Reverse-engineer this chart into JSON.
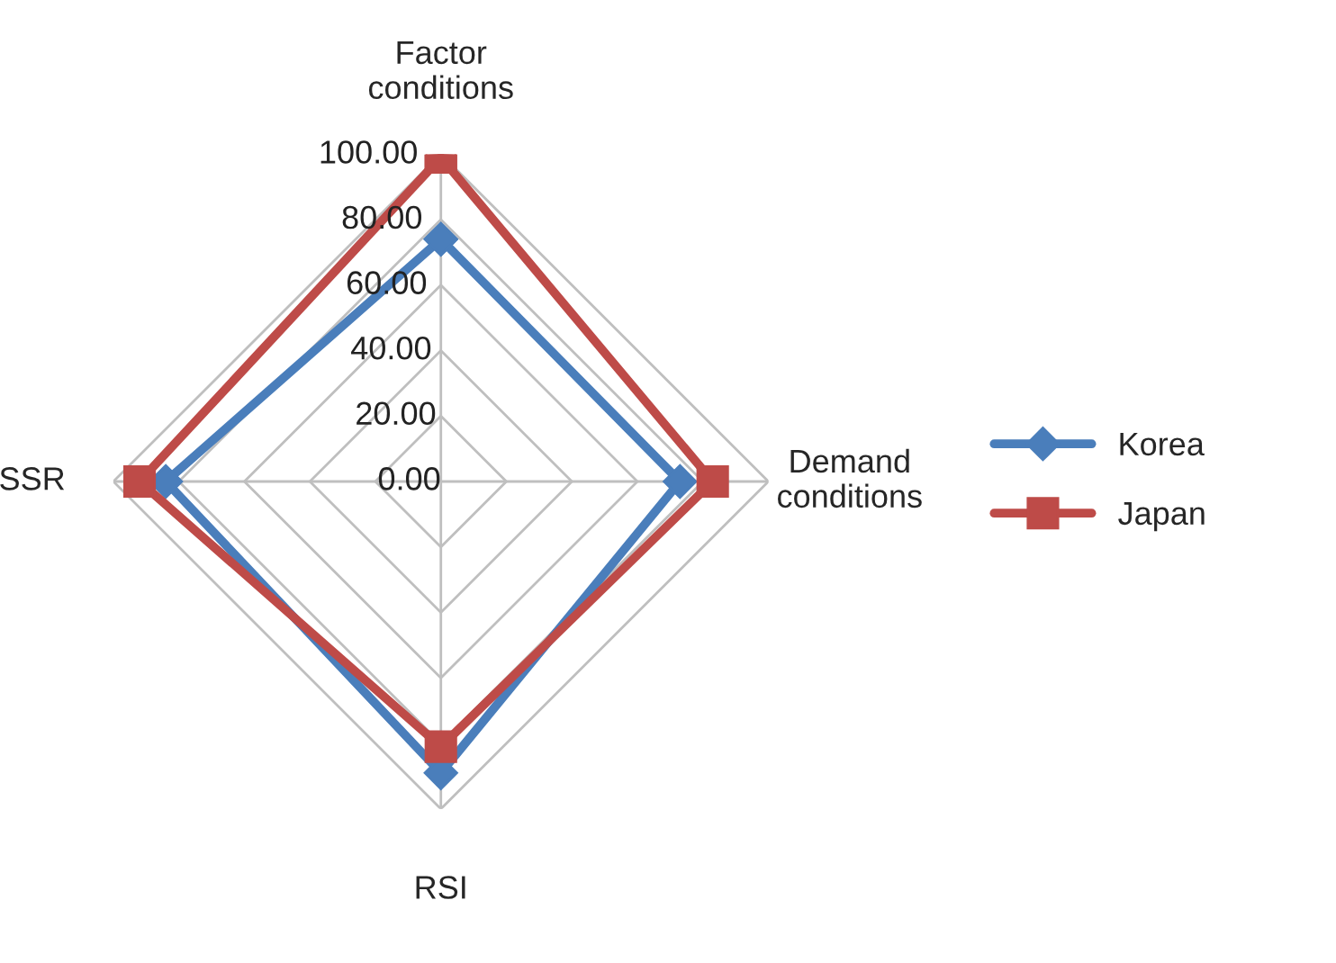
{
  "chart_data": {
    "type": "radar",
    "categories": [
      "Factor\nconditions",
      "Demand\nconditions",
      "RSI",
      "SSR"
    ],
    "series": [
      {
        "name": "Korea",
        "color": "#4a7ebb",
        "values": [
          74,
          73,
          89,
          84
        ],
        "marker": "diamond"
      },
      {
        "name": "Japan",
        "color": "#be4b48",
        "values": [
          99,
          83,
          81,
          92
        ],
        "marker": "square"
      }
    ],
    "ylim": [
      0,
      100
    ],
    "yticks": [
      {
        "value": 0,
        "label": "0.00"
      },
      {
        "value": 20,
        "label": "20.00"
      },
      {
        "value": 40,
        "label": "40.00"
      },
      {
        "value": 60,
        "label": "60.00"
      },
      {
        "value": 80,
        "label": "80.00"
      },
      {
        "value": 100,
        "label": "100.00"
      }
    ],
    "grid": true,
    "legend": "right"
  }
}
